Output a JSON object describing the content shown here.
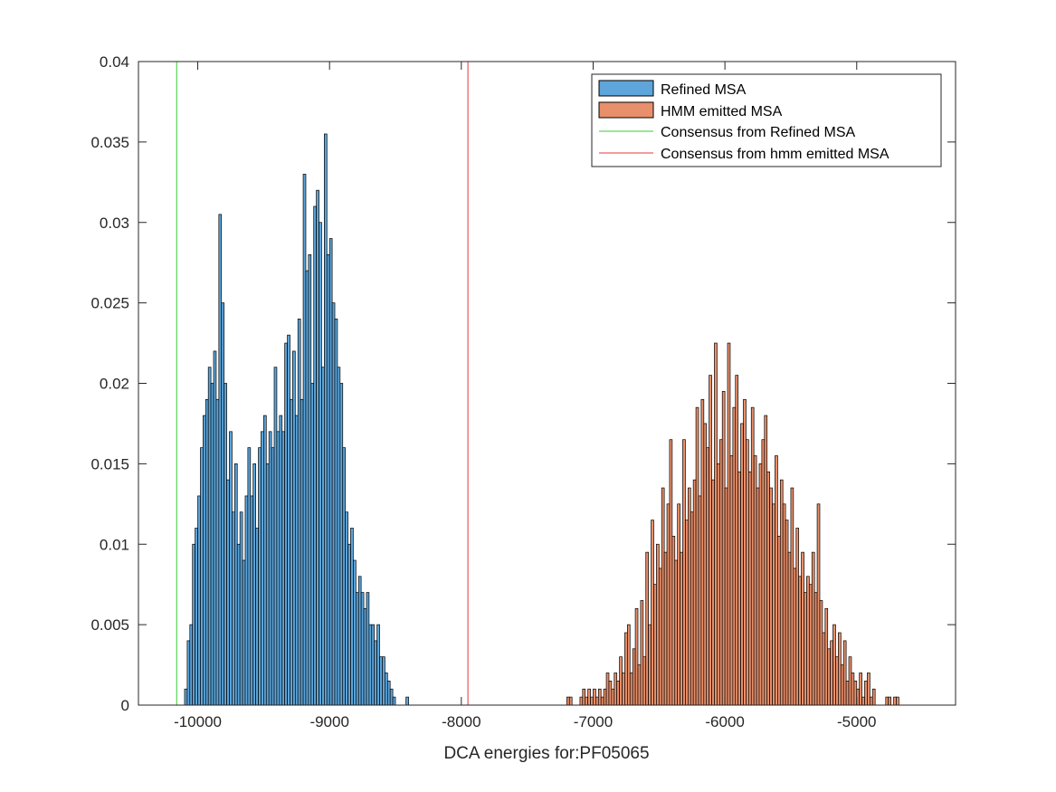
{
  "chart_data": {
    "type": "histogram",
    "xlabel": "DCA energies for:PF05065",
    "ylabel": "",
    "title": "",
    "xlim": [
      -10450,
      -4250
    ],
    "ylim": [
      0,
      0.04
    ],
    "x_ticks": [
      -10000,
      -9000,
      -8000,
      -7000,
      -6000,
      -5000
    ],
    "x_tick_labels": [
      "-10000",
      "-9000",
      "-8000",
      "-7000",
      "-6000",
      "-5000"
    ],
    "y_ticks": [
      0,
      0.005,
      0.01,
      0.015,
      0.02,
      0.025,
      0.03,
      0.035,
      0.04
    ],
    "y_tick_labels": [
      "0",
      "0.005",
      "0.01",
      "0.015",
      "0.02",
      "0.025",
      "0.03",
      "0.035",
      "0.04"
    ],
    "grid": false,
    "legend_position": "top-right",
    "series": [
      {
        "name": "Refined MSA",
        "kind": "histogram",
        "color": "#5DA5DA",
        "bin_start": -10100,
        "bin_width": 20,
        "values": [
          0.001,
          0.004,
          0.005,
          0.01,
          0.011,
          0.013,
          0.016,
          0.018,
          0.019,
          0.021,
          0.02,
          0.022,
          0.019,
          0.0305,
          0.025,
          0.02,
          0.014,
          0.017,
          0.012,
          0.015,
          0.01,
          0.012,
          0.009,
          0.013,
          0.016,
          0.013,
          0.015,
          0.011,
          0.016,
          0.017,
          0.018,
          0.015,
          0.017,
          0.016,
          0.021,
          0.017,
          0.018,
          0.017,
          0.0225,
          0.023,
          0.019,
          0.022,
          0.018,
          0.024,
          0.019,
          0.033,
          0.027,
          0.028,
          0.02,
          0.031,
          0.032,
          0.03,
          0.021,
          0.0355,
          0.028,
          0.029,
          0.025,
          0.024,
          0.021,
          0.02,
          0.016,
          0.012,
          0.01,
          0.011,
          0.009,
          0.007,
          0.008,
          0.007,
          0.006,
          0.007,
          0.005,
          0.005,
          0.004,
          0.005,
          0.003,
          0.003,
          0.002,
          0.0015,
          0.001,
          0.0005,
          0.0,
          0.0,
          0.0,
          0.0,
          0.0005
        ]
      },
      {
        "name": "HMM emitted MSA",
        "kind": "histogram",
        "color": "#E8906B",
        "bin_start": -7200,
        "bin_width": 20,
        "values": [
          0.0005,
          0.0005,
          0,
          0,
          0,
          0.0005,
          0.001,
          0.0005,
          0.001,
          0.0005,
          0.001,
          0.0005,
          0.001,
          0.0005,
          0.001,
          0.002,
          0.0015,
          0.001,
          0.002,
          0.0015,
          0.003,
          0.002,
          0.0045,
          0.005,
          0.002,
          0.0035,
          0.006,
          0.0025,
          0.0065,
          0.003,
          0.0095,
          0.005,
          0.0115,
          0.0075,
          0.01,
          0.0085,
          0.0135,
          0.0095,
          0.0125,
          0.0165,
          0.0105,
          0.009,
          0.0125,
          0.0095,
          0.0165,
          0.0115,
          0.0135,
          0.012,
          0.014,
          0.0185,
          0.013,
          0.019,
          0.0175,
          0.016,
          0.0205,
          0.014,
          0.0225,
          0.015,
          0.0165,
          0.0195,
          0.0135,
          0.0225,
          0.0155,
          0.0185,
          0.0205,
          0.0145,
          0.0175,
          0.019,
          0.0165,
          0.0145,
          0.0185,
          0.0155,
          0.0135,
          0.015,
          0.0165,
          0.018,
          0.0145,
          0.0135,
          0.0125,
          0.0155,
          0.0105,
          0.014,
          0.0125,
          0.0115,
          0.0095,
          0.0135,
          0.0085,
          0.011,
          0.008,
          0.0095,
          0.007,
          0.008,
          0.0075,
          0.0095,
          0.007,
          0.0125,
          0.0065,
          0.0045,
          0.006,
          0.0035,
          0.004,
          0.005,
          0.003,
          0.0045,
          0.0025,
          0.004,
          0.0015,
          0.003,
          0.002,
          0.0015,
          0.001,
          0.002,
          0.0005,
          0.0015,
          0.002,
          0.0005,
          0.001,
          0,
          0,
          0,
          0,
          0.0005,
          0.0005,
          0,
          0.0005,
          0.0005
        ]
      },
      {
        "name": "Consensus from Refined MSA",
        "kind": "vline",
        "color": "#33CC33",
        "x": -10160
      },
      {
        "name": "Consensus from hmm emitted MSA",
        "kind": "vline",
        "color": "#E8353A",
        "x": -7950
      }
    ]
  }
}
